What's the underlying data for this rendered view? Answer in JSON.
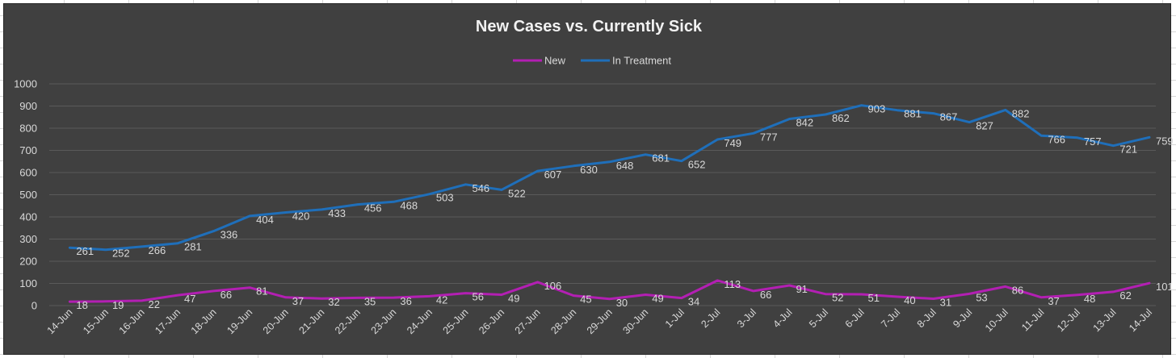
{
  "chart_data": {
    "type": "line",
    "title": "New Cases vs. Currently Sick",
    "xlabel": "",
    "ylabel": "",
    "ylim": [
      0,
      1000
    ],
    "yticks": [
      0,
      100,
      200,
      300,
      400,
      500,
      600,
      700,
      800,
      900,
      1000
    ],
    "grid": true,
    "legend_position": "top",
    "categories": [
      "14-Jun",
      "15-Jun",
      "16-Jun",
      "17-Jun",
      "18-Jun",
      "19-Jun",
      "20-Jun",
      "21-Jun",
      "22-Jun",
      "23-Jun",
      "24-Jun",
      "25-Jun",
      "26-Jun",
      "27-Jun",
      "28-Jun",
      "29-Jun",
      "30-Jun",
      "1-Jul",
      "2-Jul",
      "3-Jul",
      "4-Jul",
      "5-Jul",
      "6-Jul",
      "7-Jul",
      "8-Jul",
      "9-Jul",
      "10-Jul",
      "11-Jul",
      "12-Jul",
      "13-Jul",
      "14-Jul"
    ],
    "series": [
      {
        "name": "New",
        "color": "#b31fb3",
        "values": [
          18,
          19,
          22,
          47,
          66,
          81,
          37,
          32,
          35,
          36,
          42,
          56,
          49,
          106,
          45,
          30,
          49,
          34,
          113,
          66,
          91,
          52,
          51,
          40,
          31,
          53,
          86,
          37,
          48,
          62,
          101
        ]
      },
      {
        "name": "In Treatment",
        "color": "#1f6fba",
        "values": [
          261,
          252,
          266,
          281,
          336,
          404,
          420,
          433,
          456,
          468,
          503,
          546,
          522,
          607,
          630,
          648,
          681,
          652,
          749,
          777,
          842,
          862,
          903,
          881,
          867,
          827,
          882,
          766,
          757,
          721,
          759
        ]
      }
    ]
  },
  "colors": {
    "background": "#404040",
    "gridline": "#5a5a5a",
    "text": "#d9d9d9"
  }
}
